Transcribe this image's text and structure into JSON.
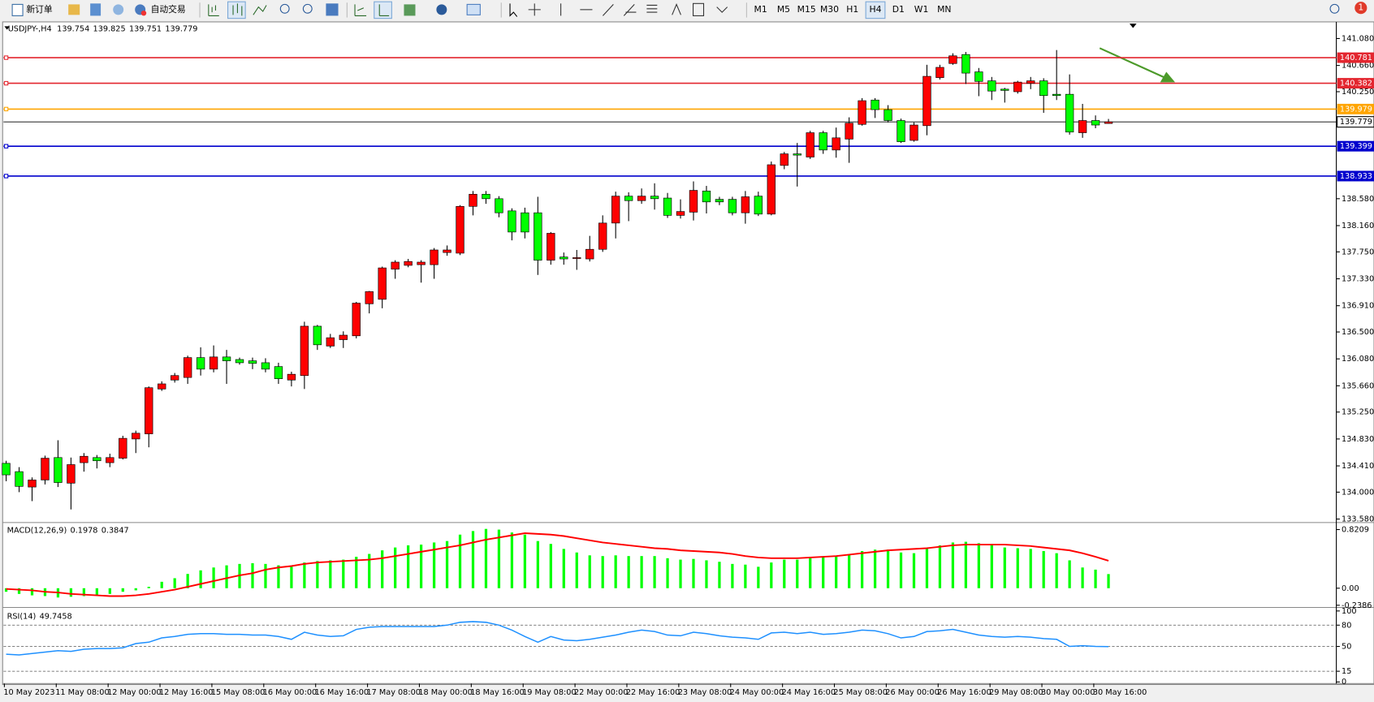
{
  "toolbar": {
    "new_order": "新订单",
    "auto_trading": "自动交易",
    "timeframes": [
      "M1",
      "M5",
      "M15",
      "M30",
      "H1",
      "H4",
      "D1",
      "W1",
      "MN"
    ],
    "active_timeframe": "H4",
    "notifications": "1"
  },
  "chart_data": [
    {
      "type": "candlestick",
      "symbol": "USDJPY-,H4",
      "up_color": "#ff0000",
      "down_color": "#00ff00",
      "ylim": [
        133.539,
        141.326
      ],
      "yticks": [
        {
          "value": 133.58,
          "label": "133.580"
        },
        {
          "value": 134,
          "label": "134.000"
        },
        {
          "value": 134.41,
          "label": "134.410"
        },
        {
          "value": 134.83,
          "label": "134.830"
        },
        {
          "value": 135.25,
          "label": "135.250"
        },
        {
          "value": 135.66,
          "label": "135.660"
        },
        {
          "value": 136.08,
          "label": "136.080"
        },
        {
          "value": 136.5,
          "label": "136.500"
        },
        {
          "value": 136.91,
          "label": "136.910"
        },
        {
          "value": 137.33,
          "label": "137.330"
        },
        {
          "value": 137.75,
          "label": "137.750"
        },
        {
          "value": 138.16,
          "label": "138.160"
        },
        {
          "value": 138.58,
          "label": "138.580"
        },
        {
          "value": 140.25,
          "label": "140.250"
        },
        {
          "value": 140.66,
          "label": "140.660"
        },
        {
          "value": 141.08,
          "label": "141.080"
        }
      ],
      "hlines": [
        {
          "value": 140.781,
          "color": "#e3262f"
        },
        {
          "value": 140.382,
          "color": "#e3262f"
        },
        {
          "value": 139.979,
          "color": "#ffa500"
        },
        {
          "value": 139.399,
          "color": "#0000cd"
        },
        {
          "value": 138.933,
          "color": "#0000cd"
        }
      ],
      "categories": [
        "10 May 2023",
        null,
        null,
        null,
        "11 May 08:00",
        null,
        null,
        null,
        "12 May 00:00",
        null,
        null,
        null,
        "12 May 16:00",
        null,
        null,
        null,
        "15 May 08:00",
        null,
        null,
        null,
        "16 May 00:00",
        null,
        null,
        null,
        "16 May 16:00",
        null,
        null,
        null,
        "17 May 08:00",
        null,
        null,
        null,
        "18 May 00:00",
        null,
        null,
        null,
        "18 May 16:00",
        null,
        null,
        null,
        "19 May 08:00",
        null,
        null,
        null,
        "22 May 00:00",
        null,
        null,
        null,
        "22 May 16:00",
        null,
        null,
        null,
        "23 May 08:00",
        null,
        null,
        null,
        "24 May 00:00",
        null,
        null,
        null,
        "24 May 16:00",
        null,
        null,
        null,
        "25 May 08:00",
        null,
        null,
        null,
        "26 May 00:00",
        null,
        null,
        null,
        "26 May 16:00",
        null,
        null,
        null,
        "29 May 08:00",
        null,
        null,
        null,
        "30 May 00:00",
        null,
        null,
        null,
        "30 May 16:00",
        null
      ],
      "candles": [
        [
          134.45,
          134.49,
          134.17,
          134.27
        ],
        [
          134.32,
          134.39,
          134.0,
          134.09
        ],
        [
          134.08,
          134.23,
          133.86,
          134.19
        ],
        [
          134.19,
          134.57,
          134.12,
          134.53
        ],
        [
          134.54,
          134.81,
          134.08,
          134.15
        ],
        [
          134.14,
          134.54,
          133.73,
          134.43
        ],
        [
          134.46,
          134.61,
          134.32,
          134.56
        ],
        [
          134.54,
          134.58,
          134.37,
          134.49
        ],
        [
          134.46,
          134.6,
          134.39,
          134.54
        ],
        [
          134.53,
          134.88,
          134.51,
          134.84
        ],
        [
          134.83,
          134.96,
          134.61,
          134.92
        ],
        [
          134.91,
          135.65,
          134.7,
          135.63
        ],
        [
          135.61,
          135.73,
          135.58,
          135.69
        ],
        [
          135.75,
          135.86,
          135.71,
          135.82
        ],
        [
          135.79,
          136.13,
          135.69,
          136.1
        ],
        [
          136.1,
          136.26,
          135.82,
          135.92
        ],
        [
          135.92,
          136.29,
          135.87,
          136.11
        ],
        [
          136.11,
          136.22,
          135.69,
          136.05
        ],
        [
          136.07,
          136.1,
          135.99,
          136.02
        ],
        [
          136.05,
          136.1,
          135.92,
          136.01
        ],
        [
          136.02,
          136.09,
          135.87,
          135.92
        ],
        [
          135.96,
          136.02,
          135.69,
          135.77
        ],
        [
          135.75,
          135.88,
          135.65,
          135.84
        ],
        [
          135.82,
          136.66,
          135.61,
          136.59
        ],
        [
          136.59,
          136.61,
          136.22,
          136.3
        ],
        [
          136.28,
          136.47,
          136.25,
          136.41
        ],
        [
          136.38,
          136.51,
          136.25,
          136.45
        ],
        [
          136.44,
          136.97,
          136.4,
          136.95
        ],
        [
          136.94,
          137.14,
          136.79,
          137.13
        ],
        [
          137.01,
          137.52,
          136.87,
          137.5
        ],
        [
          137.48,
          137.62,
          137.33,
          137.59
        ],
        [
          137.54,
          137.64,
          137.51,
          137.6
        ],
        [
          137.55,
          137.62,
          137.27,
          137.59
        ],
        [
          137.55,
          137.81,
          137.33,
          137.78
        ],
        [
          137.74,
          137.85,
          137.69,
          137.78
        ],
        [
          137.73,
          138.48,
          137.7,
          138.46
        ],
        [
          138.46,
          138.7,
          138.32,
          138.65
        ],
        [
          138.65,
          138.7,
          138.5,
          138.58
        ],
        [
          138.58,
          138.62,
          138.29,
          138.36
        ],
        [
          138.39,
          138.43,
          137.93,
          138.06
        ],
        [
          138.36,
          138.44,
          137.96,
          138.06
        ],
        [
          138.36,
          138.61,
          137.39,
          137.62
        ],
        [
          137.62,
          138.06,
          137.55,
          138.04
        ],
        [
          137.67,
          137.74,
          137.55,
          137.64
        ],
        [
          137.65,
          137.78,
          137.47,
          137.66
        ],
        [
          137.64,
          138.0,
          137.6,
          137.79
        ],
        [
          137.79,
          138.32,
          137.75,
          138.2
        ],
        [
          138.2,
          138.69,
          137.96,
          138.62
        ],
        [
          138.62,
          138.68,
          138.23,
          138.55
        ],
        [
          138.55,
          138.74,
          138.5,
          138.62
        ],
        [
          138.62,
          138.82,
          138.41,
          138.58
        ],
        [
          138.59,
          138.67,
          138.28,
          138.32
        ],
        [
          138.32,
          138.57,
          138.27,
          138.38
        ],
        [
          138.37,
          138.85,
          138.24,
          138.71
        ],
        [
          138.7,
          138.78,
          138.35,
          138.53
        ],
        [
          138.57,
          138.61,
          138.48,
          138.53
        ],
        [
          138.57,
          138.61,
          138.32,
          138.36
        ],
        [
          138.36,
          138.7,
          138.19,
          138.61
        ],
        [
          138.62,
          138.69,
          138.31,
          138.34
        ],
        [
          138.34,
          139.16,
          138.32,
          139.11
        ],
        [
          139.1,
          139.31,
          139.04,
          139.28
        ],
        [
          139.28,
          139.45,
          138.77,
          139.26
        ],
        [
          139.23,
          139.64,
          139.2,
          139.61
        ],
        [
          139.61,
          139.64,
          139.28,
          139.34
        ],
        [
          139.34,
          139.69,
          139.22,
          139.53
        ],
        [
          139.51,
          139.85,
          139.14,
          139.76
        ],
        [
          139.74,
          140.15,
          139.72,
          140.11
        ],
        [
          140.12,
          140.15,
          139.84,
          139.97
        ],
        [
          139.97,
          140.04,
          139.77,
          139.8
        ],
        [
          139.8,
          139.83,
          139.45,
          139.47
        ],
        [
          139.49,
          139.77,
          139.47,
          139.73
        ],
        [
          139.72,
          140.67,
          139.57,
          140.49
        ],
        [
          140.47,
          140.67,
          140.44,
          140.63
        ],
        [
          140.69,
          140.85,
          140.67,
          140.81
        ],
        [
          140.83,
          140.87,
          140.37,
          140.54
        ],
        [
          140.56,
          140.62,
          140.18,
          140.41
        ],
        [
          140.42,
          140.48,
          140.12,
          140.26
        ],
        [
          140.29,
          140.31,
          140.08,
          140.27
        ],
        [
          140.25,
          140.42,
          140.22,
          140.4
        ],
        [
          140.38,
          140.48,
          140.29,
          140.42
        ],
        [
          140.42,
          140.46,
          139.92,
          140.19
        ],
        [
          140.21,
          140.9,
          140.12,
          140.19
        ],
        [
          140.21,
          140.52,
          139.58,
          139.62
        ],
        [
          139.61,
          140.06,
          139.53,
          139.8
        ],
        [
          139.8,
          139.88,
          139.68,
          139.73
        ],
        [
          139.754,
          139.825,
          139.751,
          139.779
        ]
      ]
    },
    {
      "type": "macd",
      "name": "MACD(12,26,9)",
      "color": "#00ff00",
      "signal_color": "#ff0000",
      "ylim": [
        -0.245,
        0.9065
      ],
      "yticks": [
        -0.2386,
        {
          "value": 0,
          "label": "0.00"
        },
        0.8209
      ],
      "histogram": [
        -0.05,
        -0.08,
        -0.1,
        -0.11,
        -0.13,
        -0.12,
        -0.11,
        -0.1,
        -0.08,
        -0.05,
        -0.03,
        0.02,
        0.09,
        0.14,
        0.2,
        0.25,
        0.29,
        0.32,
        0.34,
        0.35,
        0.34,
        0.32,
        0.3,
        0.36,
        0.38,
        0.39,
        0.4,
        0.44,
        0.48,
        0.53,
        0.57,
        0.6,
        0.61,
        0.64,
        0.66,
        0.75,
        0.8,
        0.83,
        0.82,
        0.78,
        0.75,
        0.66,
        0.62,
        0.55,
        0.5,
        0.46,
        0.45,
        0.46,
        0.45,
        0.45,
        0.45,
        0.42,
        0.4,
        0.41,
        0.39,
        0.37,
        0.34,
        0.33,
        0.3,
        0.36,
        0.4,
        0.4,
        0.44,
        0.44,
        0.45,
        0.47,
        0.52,
        0.54,
        0.54,
        0.5,
        0.49,
        0.56,
        0.6,
        0.64,
        0.65,
        0.63,
        0.6,
        0.57,
        0.56,
        0.55,
        0.52,
        0.49,
        0.39,
        0.29,
        0.26,
        0.1978
      ],
      "signal": [
        -0.01,
        -0.02,
        -0.03,
        -0.05,
        -0.06,
        -0.08,
        -0.09,
        -0.1,
        -0.11,
        -0.11,
        -0.1,
        -0.08,
        -0.05,
        -0.02,
        0.02,
        0.06,
        0.1,
        0.14,
        0.18,
        0.21,
        0.26,
        0.29,
        0.31,
        0.34,
        0.36,
        0.37,
        0.38,
        0.39,
        0.4,
        0.42,
        0.45,
        0.48,
        0.51,
        0.54,
        0.57,
        0.6,
        0.64,
        0.68,
        0.71,
        0.74,
        0.77,
        0.76,
        0.75,
        0.73,
        0.7,
        0.67,
        0.64,
        0.62,
        0.6,
        0.58,
        0.56,
        0.55,
        0.53,
        0.52,
        0.51,
        0.5,
        0.48,
        0.45,
        0.43,
        0.42,
        0.42,
        0.42,
        0.43,
        0.44,
        0.45,
        0.47,
        0.49,
        0.51,
        0.53,
        0.54,
        0.55,
        0.56,
        0.58,
        0.6,
        0.61,
        0.61,
        0.61,
        0.61,
        0.6,
        0.59,
        0.57,
        0.55,
        0.53,
        0.49,
        0.44,
        0.3847
      ]
    },
    {
      "type": "line",
      "name": "RSI(14)",
      "color": "#1e90ff",
      "ylim": [
        -1.2,
        103.7
      ],
      "yticks": [
        0,
        15,
        50,
        80,
        100
      ],
      "levels": [
        15,
        50,
        80
      ],
      "values": [
        39,
        38,
        40,
        42,
        44,
        43,
        46,
        47,
        47,
        48,
        54,
        56,
        62,
        64,
        67,
        68,
        68,
        67,
        67,
        66,
        66,
        64,
        60,
        70,
        66,
        64,
        65,
        74,
        77,
        78,
        78,
        78,
        78,
        78,
        80,
        84,
        85,
        84,
        80,
        73,
        64,
        56,
        64,
        59,
        58,
        60,
        63,
        66,
        70,
        73,
        71,
        66,
        65,
        70,
        68,
        65,
        63,
        62,
        60,
        69,
        70,
        68,
        70,
        67,
        68,
        70,
        73,
        72,
        68,
        62,
        64,
        71,
        72,
        74,
        70,
        66,
        64,
        63,
        64,
        63,
        61,
        60,
        50,
        51,
        50,
        49.7458
      ]
    }
  ]
}
